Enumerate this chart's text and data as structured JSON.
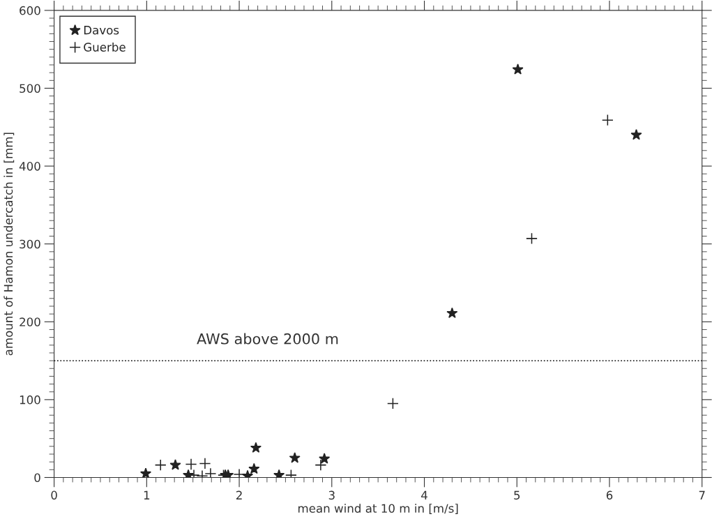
{
  "chart_data": {
    "type": "scatter",
    "xlabel": "mean wind at 10 m in [m/s]",
    "ylabel": "amount of Hamon undercatch in [mm]",
    "xlim": [
      0,
      7
    ],
    "xticks": [
      0,
      1,
      2,
      3,
      4,
      5,
      6,
      7
    ],
    "ylim": [
      0,
      600
    ],
    "yticks": [
      0,
      100,
      200,
      300,
      400,
      500,
      600
    ],
    "grid": false,
    "legend": "top left",
    "series": [
      {
        "name": "Davos",
        "color": "#222222",
        "marker": "star",
        "x": [
          0.99,
          1.31,
          1.45,
          1.85,
          1.88,
          2.09,
          2.16,
          2.18,
          2.43,
          2.6,
          2.92,
          4.3,
          5.01,
          6.29
        ],
        "values": [
          5,
          16,
          3,
          3,
          3,
          2,
          11,
          38,
          3,
          25,
          24,
          211,
          524,
          440
        ]
      },
      {
        "name": "Guerbe",
        "color": "#222222",
        "marker": "cross",
        "x": [
          1.15,
          1.48,
          1.51,
          1.6,
          1.63,
          1.69,
          1.83,
          2.0,
          2.56,
          2.88,
          3.66,
          5.16,
          5.98
        ],
        "values": [
          16,
          17,
          3,
          2,
          18,
          5,
          3,
          4,
          3,
          16,
          95,
          307,
          459
        ]
      }
    ],
    "ref_lines": [
      {
        "axis": "y",
        "value": 150,
        "label": "AWS above 2000 m",
        "line_style": "dotted",
        "color": "#222222"
      }
    ]
  }
}
